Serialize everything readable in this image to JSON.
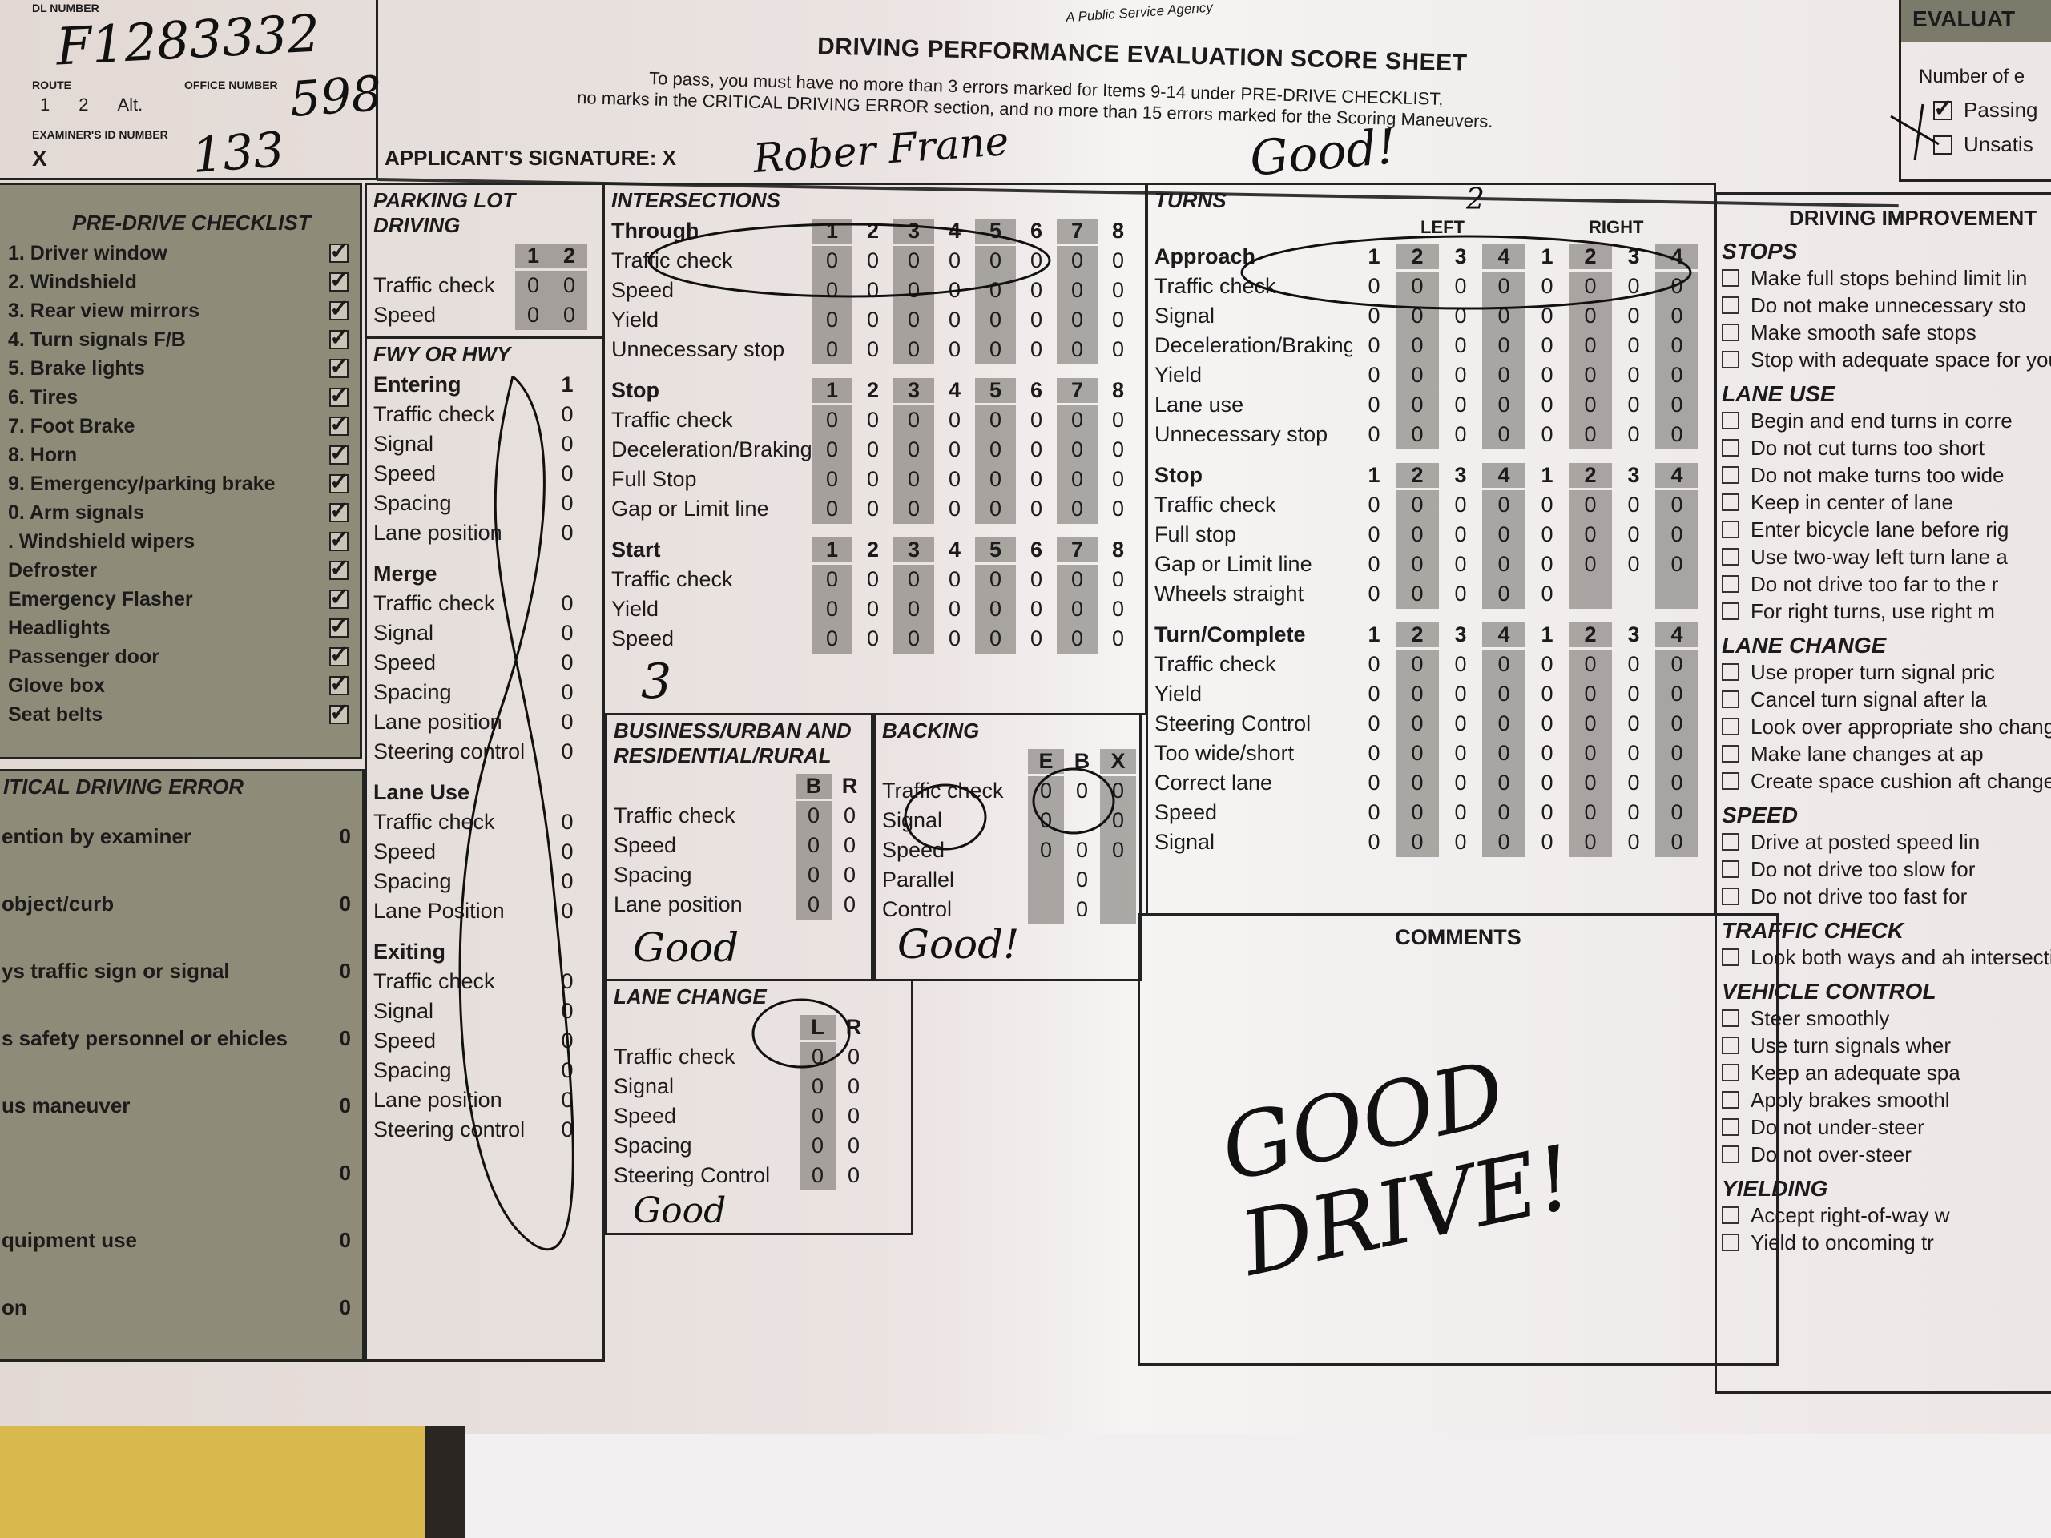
{
  "header": {
    "agency": "A Public Service Agency",
    "title": "DRIVING PERFORMANCE EVALUATION SCORE SHEET",
    "instructions_1": "To pass, you must have no more than 3 errors marked for Items 9-14 under PRE-DRIVE CHECKLIST,",
    "instructions_2": "no marks in the CRITICAL DRIVING ERROR section, and no more than 15 errors marked for the Scoring Maneuvers.",
    "signature_label": "APPLICANT'S SIGNATURE: X",
    "signature_value": "Rober Frane"
  },
  "id_box": {
    "dl_label": "DL NUMBER",
    "dl_value": "F1283332",
    "route_label": "ROUTE",
    "route_options": [
      "1",
      "2",
      "Alt."
    ],
    "office_label": "OFFICE NUMBER",
    "office_value": "598",
    "examiner_label": "EXAMINER'S ID NUMBER",
    "examiner_x": "X",
    "examiner_value": "133"
  },
  "evaluation": {
    "title": "EVALUAT",
    "number_label": "Number of e",
    "options": [
      {
        "label": "Passing",
        "checked": true
      },
      {
        "label": "Unsatis",
        "checked": false
      }
    ]
  },
  "pre_drive": {
    "title": "PRE-DRIVE CHECKLIST",
    "items": [
      {
        "label": "1. Driver window",
        "checked": true
      },
      {
        "label": "2. Windshield",
        "checked": true
      },
      {
        "label": "3. Rear view mirrors",
        "checked": true
      },
      {
        "label": "4. Turn signals   F/B",
        "checked": true
      },
      {
        "label": "5. Brake lights",
        "checked": true
      },
      {
        "label": "6. Tires",
        "checked": true
      },
      {
        "label": "7. Foot Brake",
        "checked": true
      },
      {
        "label": "8. Horn",
        "checked": true
      },
      {
        "label": "9. Emergency/parking brake",
        "checked": true
      },
      {
        "label": "0. Arm signals",
        "checked": true
      },
      {
        "label": ". Windshield wipers",
        "checked": true
      },
      {
        "label": "Defroster",
        "checked": true
      },
      {
        "label": "Emergency Flasher",
        "checked": true
      },
      {
        "label": "Headlights",
        "checked": true
      },
      {
        "label": "Passenger door",
        "checked": true
      },
      {
        "label": "Glove box",
        "checked": true
      },
      {
        "label": "Seat belts",
        "checked": true
      }
    ]
  },
  "critical": {
    "title": "ITICAL DRIVING ERROR",
    "items": [
      {
        "label": "ention by examiner",
        "value": "0"
      },
      {
        "label": "object/curb",
        "value": "0"
      },
      {
        "label": "ys traffic sign or signal",
        "value": "0"
      },
      {
        "label": "s safety personnel or ehicles",
        "value": "0"
      },
      {
        "label": "us maneuver",
        "value": "0"
      },
      {
        "label": "",
        "value": "0"
      },
      {
        "label": "quipment use",
        "value": "0"
      },
      {
        "label": "on",
        "value": "0"
      }
    ]
  },
  "parking": {
    "title": "PARKING LOT DRIVING",
    "groups": [
      {
        "label": "",
        "columns": [
          "1",
          "2"
        ],
        "rows": [
          {
            "label": "Traffic check",
            "values": [
              "0",
              "0"
            ]
          },
          {
            "label": "Speed",
            "values": [
              "0",
              "0"
            ]
          }
        ]
      }
    ]
  },
  "freeway": {
    "title": "FWY OR HWY",
    "groups": [
      {
        "label": "Entering",
        "columns": [
          "1"
        ],
        "rows": [
          {
            "label": "Traffic check",
            "values": [
              "0"
            ]
          },
          {
            "label": "Signal",
            "values": [
              "0"
            ]
          },
          {
            "label": "Speed",
            "values": [
              "0"
            ]
          },
          {
            "label": "Spacing",
            "values": [
              "0"
            ]
          },
          {
            "label": "Lane position",
            "values": [
              "0"
            ]
          }
        ]
      },
      {
        "label": "Merge",
        "columns": [
          ""
        ],
        "rows": [
          {
            "label": "Traffic check",
            "values": [
              "0"
            ]
          },
          {
            "label": "Signal",
            "values": [
              "0"
            ]
          },
          {
            "label": "Speed",
            "values": [
              "0"
            ]
          },
          {
            "label": "Spacing",
            "values": [
              "0"
            ]
          },
          {
            "label": "Lane position",
            "values": [
              "0"
            ]
          },
          {
            "label": "Steering control",
            "values": [
              "0"
            ]
          }
        ]
      },
      {
        "label": "Lane Use",
        "columns": [
          ""
        ],
        "rows": [
          {
            "label": "Traffic check",
            "values": [
              "0"
            ]
          },
          {
            "label": "Speed",
            "values": [
              "0"
            ]
          },
          {
            "label": "Spacing",
            "values": [
              "0"
            ]
          },
          {
            "label": "Lane Position",
            "values": [
              "0"
            ]
          }
        ]
      },
      {
        "label": "Exiting",
        "columns": [
          ""
        ],
        "rows": [
          {
            "label": "Traffic check",
            "values": [
              "0"
            ]
          },
          {
            "label": "Signal",
            "values": [
              "0"
            ]
          },
          {
            "label": "Speed",
            "values": [
              "0"
            ]
          },
          {
            "label": "Spacing",
            "values": [
              "0"
            ]
          },
          {
            "label": "Lane position",
            "values": [
              "0"
            ]
          },
          {
            "label": "Steering control",
            "values": [
              "0"
            ]
          }
        ]
      }
    ]
  },
  "intersections": {
    "title": "INTERSECTIONS",
    "groups": [
      {
        "label": "Through",
        "columns": [
          "1",
          "2",
          "3",
          "4",
          "5",
          "6",
          "7",
          "8"
        ],
        "rows": [
          {
            "label": "Traffic check",
            "values": [
              "0",
              "0",
              "0",
              "0",
              "0",
              "0",
              "0",
              "0"
            ]
          },
          {
            "label": "Speed",
            "values": [
              "0",
              "0",
              "0",
              "0",
              "0",
              "0",
              "0",
              "0"
            ]
          },
          {
            "label": "Yield",
            "values": [
              "0",
              "0",
              "0",
              "0",
              "0",
              "0",
              "0",
              "0"
            ]
          },
          {
            "label": "Unnecessary stop",
            "values": [
              "0",
              "0",
              "0",
              "0",
              "0",
              "0",
              "0",
              "0"
            ]
          }
        ]
      },
      {
        "label": "Stop",
        "columns": [
          "1",
          "2",
          "3",
          "4",
          "5",
          "6",
          "7",
          "8"
        ],
        "rows": [
          {
            "label": "Traffic check",
            "values": [
              "0",
              "0",
              "0",
              "0",
              "0",
              "0",
              "0",
              "0"
            ]
          },
          {
            "label": "Deceleration/Braking",
            "values": [
              "0",
              "0",
              "0",
              "0",
              "0",
              "0",
              "0",
              "0"
            ]
          },
          {
            "label": "Full Stop",
            "values": [
              "0",
              "0",
              "0",
              "0",
              "0",
              "0",
              "0",
              "0"
            ]
          },
          {
            "label": "Gap or Limit line",
            "values": [
              "0",
              "0",
              "0",
              "0",
              "0",
              "0",
              "0",
              "0"
            ]
          }
        ]
      },
      {
        "label": "Start",
        "columns": [
          "1",
          "2",
          "3",
          "4",
          "5",
          "6",
          "7",
          "8"
        ],
        "rows": [
          {
            "label": "Traffic check",
            "values": [
              "0",
              "0",
              "0",
              "0",
              "0",
              "0",
              "0",
              "0"
            ]
          },
          {
            "label": "Yield",
            "values": [
              "0",
              "0",
              "0",
              "0",
              "0",
              "0",
              "0",
              "0"
            ]
          },
          {
            "label": "Speed",
            "values": [
              "0",
              "0",
              "0",
              "0",
              "0",
              "0",
              "0",
              "0"
            ]
          }
        ]
      }
    ]
  },
  "business": {
    "title": "BUSINESS/URBAN AND RESIDENTIAL/RURAL",
    "groups": [
      {
        "label": "",
        "columns": [
          "B",
          "R"
        ],
        "rows": [
          {
            "label": "Traffic check",
            "values": [
              "0",
              "0"
            ]
          },
          {
            "label": "Speed",
            "values": [
              "0",
              "0"
            ]
          },
          {
            "label": "Spacing",
            "values": [
              "0",
              "0"
            ]
          },
          {
            "label": "Lane position",
            "values": [
              "0",
              "0"
            ]
          }
        ]
      }
    ]
  },
  "backing": {
    "title": "BACKING",
    "groups": [
      {
        "label": "",
        "columns": [
          "E",
          "B",
          "X"
        ],
        "rows": [
          {
            "label": "Traffic check",
            "values": [
              "0",
              "0",
              "0"
            ]
          },
          {
            "label": "Signal",
            "values": [
              "0",
              "",
              "0"
            ]
          },
          {
            "label": "Speed",
            "values": [
              "0",
              "0",
              "0"
            ]
          },
          {
            "label": "Parallel",
            "values": [
              "",
              "0",
              ""
            ]
          },
          {
            "label": "Control",
            "values": [
              "",
              "0",
              ""
            ]
          }
        ]
      }
    ]
  },
  "lane_change": {
    "title": "LANE CHANGE",
    "groups": [
      {
        "label": "",
        "columns": [
          "L",
          "R"
        ],
        "rows": [
          {
            "label": "Traffic check",
            "values": [
              "0",
              "0"
            ]
          },
          {
            "label": "Signal",
            "values": [
              "0",
              "0"
            ]
          },
          {
            "label": "Speed",
            "values": [
              "0",
              "0"
            ]
          },
          {
            "label": "Spacing",
            "values": [
              "0",
              "0"
            ]
          },
          {
            "label": "Steering Control",
            "values": [
              "0",
              "0"
            ]
          }
        ]
      }
    ]
  },
  "turns": {
    "title": "TURNS",
    "left_label": "LEFT",
    "right_label": "RIGHT",
    "groups": [
      {
        "label": "Approach",
        "columns": [
          "1",
          "2",
          "3",
          "4",
          "1",
          "2",
          "3",
          "4"
        ],
        "rows": [
          {
            "label": "Traffic check",
            "values": [
              "0",
              "0",
              "0",
              "0",
              "0",
              "0",
              "0",
              "0"
            ]
          },
          {
            "label": "Signal",
            "values": [
              "0",
              "0",
              "0",
              "0",
              "0",
              "0",
              "0",
              "0"
            ]
          },
          {
            "label": "Deceleration/Braking",
            "values": [
              "0",
              "0",
              "0",
              "0",
              "0",
              "0",
              "0",
              "0"
            ]
          },
          {
            "label": "Yield",
            "values": [
              "0",
              "0",
              "0",
              "0",
              "0",
              "0",
              "0",
              "0"
            ]
          },
          {
            "label": "Lane use",
            "values": [
              "0",
              "0",
              "0",
              "0",
              "0",
              "0",
              "0",
              "0"
            ]
          },
          {
            "label": "Unnecessary stop",
            "values": [
              "0",
              "0",
              "0",
              "0",
              "0",
              "0",
              "0",
              "0"
            ]
          }
        ]
      },
      {
        "label": "Stop",
        "columns": [
          "1",
          "2",
          "3",
          "4",
          "1",
          "2",
          "3",
          "4"
        ],
        "rows": [
          {
            "label": "Traffic check",
            "values": [
              "0",
              "0",
              "0",
              "0",
              "0",
              "0",
              "0",
              "0"
            ]
          },
          {
            "label": "Full stop",
            "values": [
              "0",
              "0",
              "0",
              "0",
              "0",
              "0",
              "0",
              "0"
            ]
          },
          {
            "label": "Gap or Limit line",
            "values": [
              "0",
              "0",
              "0",
              "0",
              "0",
              "0",
              "0",
              "0"
            ]
          },
          {
            "label": "Wheels straight",
            "values": [
              "0",
              "0",
              "0",
              "0",
              "0",
              "",
              "",
              ""
            ]
          }
        ]
      },
      {
        "label": "Turn/Complete",
        "columns": [
          "1",
          "2",
          "3",
          "4",
          "1",
          "2",
          "3",
          "4"
        ],
        "rows": [
          {
            "label": "Traffic check",
            "values": [
              "0",
              "0",
              "0",
              "0",
              "0",
              "0",
              "0",
              "0"
            ]
          },
          {
            "label": "Yield",
            "values": [
              "0",
              "0",
              "0",
              "0",
              "0",
              "0",
              "0",
              "0"
            ]
          },
          {
            "label": "Steering Control",
            "values": [
              "0",
              "0",
              "0",
              "0",
              "0",
              "0",
              "0",
              "0"
            ]
          },
          {
            "label": "Too wide/short",
            "values": [
              "0",
              "0",
              "0",
              "0",
              "0",
              "0",
              "0",
              "0"
            ]
          },
          {
            "label": "Correct lane",
            "values": [
              "0",
              "0",
              "0",
              "0",
              "0",
              "0",
              "0",
              "0"
            ]
          },
          {
            "label": "Speed",
            "values": [
              "0",
              "0",
              "0",
              "0",
              "0",
              "0",
              "0",
              "0"
            ]
          },
          {
            "label": "Signal",
            "values": [
              "0",
              "0",
              "0",
              "0",
              "0",
              "0",
              "0",
              "0"
            ]
          }
        ]
      }
    ]
  },
  "comments": {
    "title": "COMMENTS",
    "handwritten": "GOOD DRIVE!"
  },
  "improvement": {
    "title": "DRIVING IMPROVEMENT",
    "categories": [
      {
        "title": "STOPS",
        "items": [
          "Make full stops behind limit lin",
          "Do not make unnecessary sto",
          "Make smooth safe stops",
          "Stop with adequate space for you"
        ]
      },
      {
        "title": "LANE USE",
        "items": [
          "Begin and end turns in corre",
          "Do not cut turns too short",
          "Do not make turns too wide",
          "Keep in center of lane",
          "Enter bicycle lane before rig",
          "Use two-way left turn lane a",
          "Do not drive too far to the r",
          "For right turns, use right m"
        ]
      },
      {
        "title": "LANE CHANGE",
        "items": [
          "Use proper turn signal pric",
          "Cancel turn signal after la",
          "Look over appropriate sho changes",
          "Make lane changes at ap",
          "Create space cushion aft change"
        ]
      },
      {
        "title": "SPEED",
        "items": [
          "Drive at posted speed lin",
          "Do not drive too slow for",
          "Do not drive too fast for"
        ]
      },
      {
        "title": "TRAFFIC CHECK",
        "items": [
          "Look both ways and ah intersections"
        ]
      },
      {
        "title": "VEHICLE CONTROL",
        "items": [
          "Steer smoothly",
          "Use turn signals wher",
          "Keep an adequate spa",
          "Apply brakes smoothl",
          "Do not under-steer",
          "Do not over-steer"
        ]
      },
      {
        "title": "YIELDING",
        "items": [
          "Accept right-of-way w",
          "Yield to oncoming tr"
        ]
      }
    ]
  },
  "handwriting": {
    "turns_note": "Good!",
    "intersections_mark": "3",
    "turns_mark": "2",
    "business_note": "Good",
    "backing_note": "Good!",
    "lane_change_note": "Good"
  },
  "colors": {
    "paper": "#e6dedb",
    "panel_gray": "#8e8c78",
    "ink": "#1c1a1a"
  }
}
